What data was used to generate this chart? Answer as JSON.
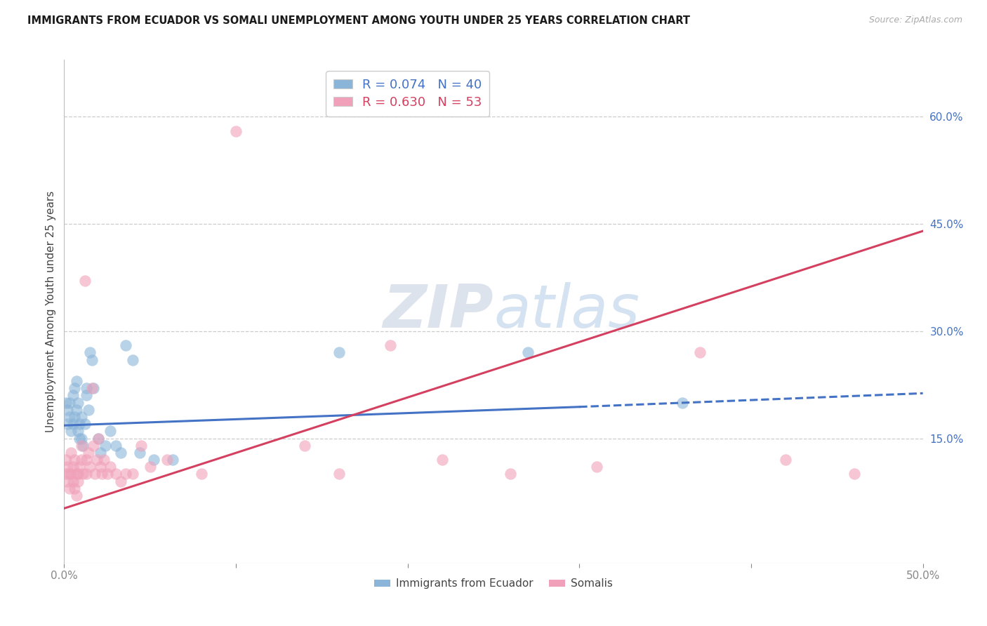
{
  "title": "IMMIGRANTS FROM ECUADOR VS SOMALI UNEMPLOYMENT AMONG YOUTH UNDER 25 YEARS CORRELATION CHART",
  "source": "Source: ZipAtlas.com",
  "ylabel": "Unemployment Among Youth under 25 years",
  "xlim": [
    0.0,
    0.5
  ],
  "ylim": [
    -0.025,
    0.68
  ],
  "yticks_right": [
    0.15,
    0.3,
    0.45,
    0.6
  ],
  "ytick_right_labels": [
    "15.0%",
    "30.0%",
    "45.0%",
    "60.0%"
  ],
  "grid_color": "#cccccc",
  "background_color": "#ffffff",
  "ecuador_color": "#8ab4d8",
  "somalia_color": "#f0a0b8",
  "ecuador_line_color": "#4472c4",
  "somalia_line_color": "#d44060",
  "ecuador_R": 0.074,
  "ecuador_N": 40,
  "somalia_R": 0.63,
  "somalia_N": 53,
  "ecu_x": [
    0.001,
    0.002,
    0.002,
    0.003,
    0.003,
    0.004,
    0.005,
    0.005,
    0.006,
    0.006,
    0.007,
    0.007,
    0.008,
    0.008,
    0.009,
    0.009,
    0.01,
    0.011,
    0.012,
    0.013,
    0.013,
    0.014,
    0.015,
    0.016,
    0.017,
    0.02,
    0.021,
    0.024,
    0.027,
    0.03,
    0.033,
    0.036,
    0.04,
    0.044,
    0.052,
    0.063,
    0.16,
    0.27,
    0.36,
    0.01
  ],
  "ecu_y": [
    0.2,
    0.19,
    0.17,
    0.18,
    0.2,
    0.16,
    0.17,
    0.21,
    0.18,
    0.22,
    0.23,
    0.19,
    0.16,
    0.2,
    0.15,
    0.17,
    0.15,
    0.14,
    0.17,
    0.21,
    0.22,
    0.19,
    0.27,
    0.26,
    0.22,
    0.15,
    0.13,
    0.14,
    0.16,
    0.14,
    0.13,
    0.28,
    0.26,
    0.13,
    0.12,
    0.12,
    0.27,
    0.27,
    0.2,
    0.18
  ],
  "som_x": [
    0.001,
    0.001,
    0.002,
    0.002,
    0.003,
    0.003,
    0.004,
    0.004,
    0.005,
    0.005,
    0.006,
    0.006,
    0.007,
    0.007,
    0.008,
    0.008,
    0.009,
    0.01,
    0.01,
    0.011,
    0.012,
    0.013,
    0.013,
    0.014,
    0.015,
    0.016,
    0.017,
    0.018,
    0.019,
    0.02,
    0.021,
    0.022,
    0.023,
    0.025,
    0.027,
    0.03,
    0.033,
    0.036,
    0.04,
    0.045,
    0.05,
    0.06,
    0.08,
    0.1,
    0.14,
    0.16,
    0.19,
    0.22,
    0.26,
    0.31,
    0.37,
    0.42,
    0.46
  ],
  "som_y": [
    0.12,
    0.1,
    0.09,
    0.11,
    0.1,
    0.08,
    0.1,
    0.13,
    0.09,
    0.11,
    0.08,
    0.12,
    0.1,
    0.07,
    0.1,
    0.09,
    0.11,
    0.14,
    0.12,
    0.1,
    0.37,
    0.12,
    0.1,
    0.13,
    0.11,
    0.22,
    0.14,
    0.1,
    0.12,
    0.15,
    0.11,
    0.1,
    0.12,
    0.1,
    0.11,
    0.1,
    0.09,
    0.1,
    0.1,
    0.14,
    0.11,
    0.12,
    0.1,
    0.58,
    0.14,
    0.1,
    0.28,
    0.12,
    0.1,
    0.11,
    0.27,
    0.12,
    0.1
  ],
  "ecu_line_x0": 0.0,
  "ecu_line_x_split": 0.3,
  "ecu_line_x1": 0.5,
  "ecu_line_y0": 0.168,
  "ecu_line_y_split": 0.194,
  "ecu_line_y1": 0.213,
  "som_line_x0": 0.0,
  "som_line_x1": 0.5,
  "som_line_y0": 0.052,
  "som_line_y1": 0.44
}
